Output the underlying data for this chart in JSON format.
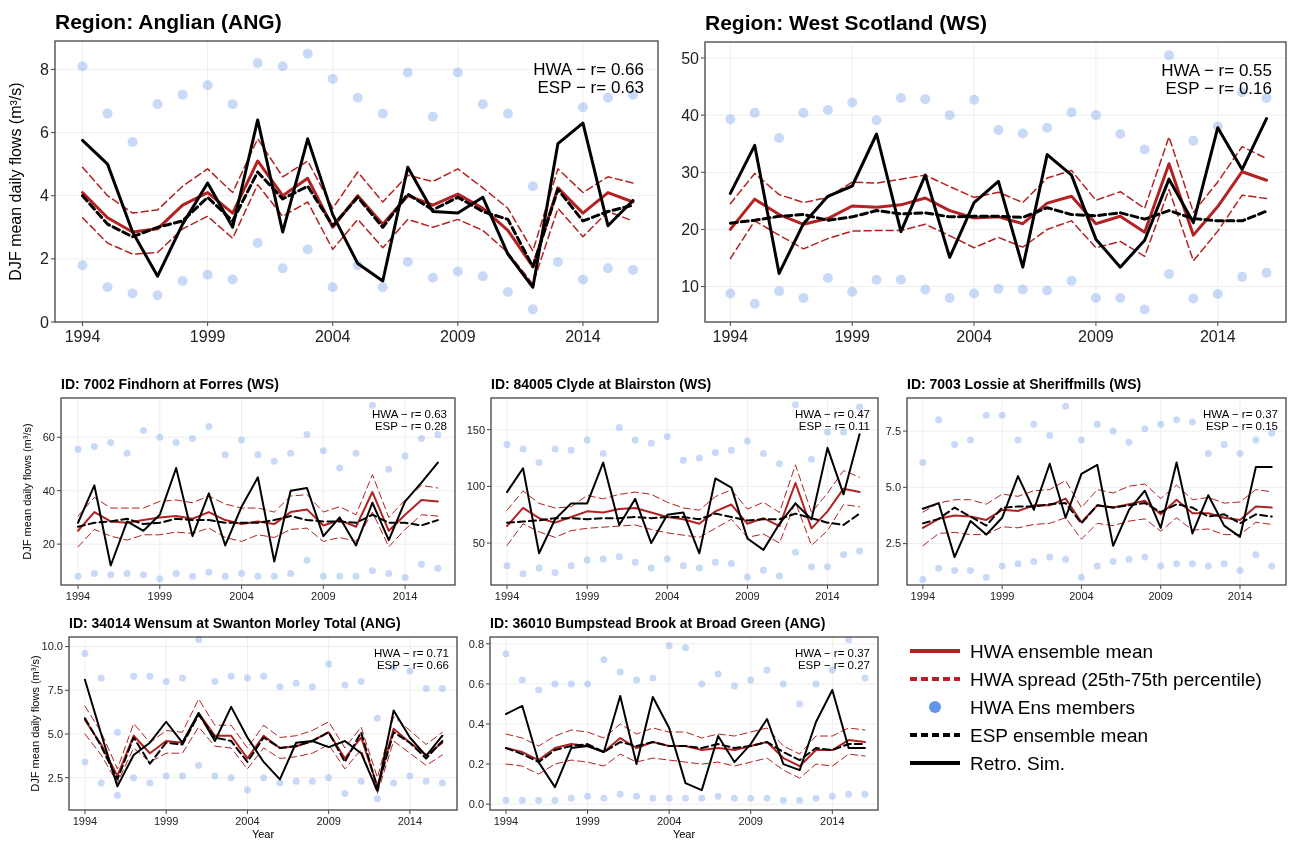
{
  "chart_data": [
    {
      "type": "line",
      "title": "Region: Anglian (ANG)",
      "ylabel": "DJF mean daily flows (m³/s)",
      "annotations": [
        "HWA − r= 0.66",
        "ESP − r= 0.63"
      ],
      "xlim": [
        1992.9,
        2017
      ],
      "ylim": [
        0,
        8.9
      ],
      "xticks": [
        1994,
        1999,
        2004,
        2009,
        2014
      ],
      "yticks": [
        0,
        2,
        4,
        6,
        8
      ],
      "grid": true,
      "legend": false,
      "x": [
        1994,
        1995,
        1996,
        1997,
        1998,
        1999,
        2000,
        2001,
        2002,
        2003,
        2004,
        2005,
        2006,
        2007,
        2008,
        2009,
        2010,
        2011,
        2012,
        2013,
        2014,
        2015,
        2016
      ],
      "series": [
        {
          "type": "scatter",
          "marker": "circle",
          "color": "#6495ed",
          "x": [
            1994,
            1994,
            1995,
            1995,
            1996,
            1996,
            1997,
            1997,
            1998,
            1998,
            1999,
            1999,
            2000,
            2000,
            2001,
            2001,
            2002,
            2002,
            2003,
            2003,
            2004,
            2004,
            2005,
            2005,
            2006,
            2006,
            2007,
            2007,
            2008,
            2008,
            2009,
            2009,
            2010,
            2010,
            2011,
            2011,
            2012,
            2012,
            2013,
            2014,
            2014,
            2015,
            2015,
            2016,
            2016
          ],
          "values": [
            1.8,
            8.1,
            1.1,
            6.6,
            0.9,
            5.7,
            0.85,
            6.9,
            1.3,
            7.2,
            1.5,
            7.5,
            1.35,
            6.9,
            2.5,
            8.2,
            1.7,
            8.1,
            2.3,
            8.5,
            1.1,
            7.7,
            1.8,
            7.1,
            1.1,
            6.6,
            1.9,
            7.9,
            1.4,
            6.5,
            1.6,
            7.9,
            1.45,
            6.9,
            0.95,
            6.6,
            0.4,
            4.3,
            1.9,
            1.35,
            6.8,
            1.7,
            7.1,
            1.65,
            7.2
          ]
        },
        {
          "type": "line",
          "line_style": "dashed",
          "color": "#b22222",
          "values": [
            4.9,
            4.0,
            3.45,
            3.55,
            4.3,
            4.85,
            4.1,
            5.8,
            4.6,
            5.1,
            3.6,
            4.75,
            3.8,
            4.65,
            4.45,
            4.85,
            4.25,
            3.6,
            2.25,
            4.85,
            4.1,
            4.6,
            4.4
          ]
        },
        {
          "type": "line",
          "line_style": "dashed",
          "color": "#b22222",
          "values": [
            3.3,
            2.5,
            2.15,
            2.2,
            2.95,
            3.35,
            2.65,
            4.35,
            3.35,
            3.8,
            2.3,
            3.25,
            2.35,
            3.25,
            3.0,
            3.25,
            2.9,
            2.2,
            1.2,
            3.6,
            2.7,
            3.5,
            3.2
          ]
        },
        {
          "type": "line",
          "line_style": "solid",
          "color": "#b22222",
          "values": [
            4.1,
            3.3,
            2.85,
            2.95,
            3.7,
            4.1,
            3.45,
            5.1,
            4.0,
            4.55,
            3.0,
            4.0,
            3.1,
            4.0,
            3.7,
            4.05,
            3.6,
            2.9,
            1.75,
            4.25,
            3.45,
            4.1,
            3.8
          ]
        },
        {
          "type": "line",
          "line_style": "dashed",
          "color": "#000000",
          "values": [
            4.0,
            3.1,
            2.7,
            3.0,
            3.2,
            3.95,
            3.2,
            4.75,
            3.9,
            4.3,
            3.05,
            3.95,
            3.0,
            4.05,
            3.55,
            3.95,
            3.5,
            3.25,
            1.75,
            4.2,
            3.2,
            3.5,
            3.7
          ]
        },
        {
          "type": "line",
          "line_style": "solid",
          "color": "#000000",
          "values": [
            5.75,
            5.0,
            2.85,
            1.45,
            3.1,
            4.4,
            3.0,
            6.4,
            2.85,
            5.8,
            3.4,
            1.85,
            1.3,
            4.9,
            3.5,
            3.45,
            3.95,
            2.15,
            1.1,
            5.65,
            6.3,
            3.05,
            3.85
          ]
        }
      ]
    },
    {
      "type": "line",
      "title": "Region: West Scotland (WS)",
      "annotations": [
        "HWA − r= 0.55",
        "ESP − r= 0.16"
      ],
      "xlim": [
        1992.96,
        2016.8
      ],
      "ylim": [
        3.8,
        52.8
      ],
      "xticks": [
        1994,
        1999,
        2004,
        2009,
        2014
      ],
      "yticks": [
        10,
        20,
        30,
        40,
        50
      ],
      "grid": true,
      "legend": false,
      "x": [
        1994,
        1995,
        1996,
        1997,
        1998,
        1999,
        2000,
        2001,
        2002,
        2003,
        2004,
        2005,
        2006,
        2007,
        2008,
        2009,
        2010,
        2011,
        2012,
        2013,
        2014,
        2015,
        2016
      ],
      "series": [
        {
          "type": "scatter",
          "marker": "circle",
          "color": "#6495ed",
          "x": [
            1994,
            1994,
            1995,
            1995,
            1996,
            1996,
            1997,
            1997,
            1998,
            1998,
            1999,
            1999,
            2000,
            2000,
            2001,
            2001,
            2002,
            2002,
            2003,
            2003,
            2004,
            2004,
            2005,
            2005,
            2006,
            2006,
            2007,
            2007,
            2008,
            2008,
            2009,
            2009,
            2010,
            2010,
            2011,
            2011,
            2012,
            2012,
            2013,
            2013,
            2014,
            2014,
            2015,
            2015,
            2016,
            2016
          ],
          "values": [
            8.8,
            39.3,
            7.0,
            40.4,
            9.2,
            36.0,
            8.0,
            40.4,
            11.5,
            40.9,
            9.1,
            42.2,
            11.2,
            39.1,
            11.2,
            43.0,
            9.5,
            42.8,
            8.0,
            40.0,
            8.8,
            42.7,
            9.6,
            37.4,
            9.5,
            36.8,
            9.3,
            37.8,
            11.0,
            40.5,
            8.0,
            40.0,
            8.0,
            36.7,
            6.0,
            34.0,
            12.2,
            50.5,
            7.9,
            35.5,
            8.7,
            38.0,
            11.7,
            44.0,
            12.4,
            43.0
          ]
        },
        {
          "type": "line",
          "line_style": "dashed",
          "color": "#b22222",
          "values": [
            24.5,
            29.8,
            26.1,
            24.7,
            25.6,
            28.3,
            28.1,
            28.8,
            29.5,
            27.5,
            25.6,
            26.5,
            24.7,
            29.0,
            30.3,
            25.1,
            26.6,
            23.7,
            36.2,
            23.0,
            28.3,
            34.5,
            32.4
          ]
        },
        {
          "type": "line",
          "line_style": "dashed",
          "color": "#b22222",
          "values": [
            14.9,
            21.5,
            19.0,
            16.6,
            18.4,
            19.7,
            19.8,
            19.8,
            20.9,
            18.9,
            16.8,
            18.6,
            16.9,
            20.0,
            21.5,
            16.8,
            17.9,
            15.3,
            27.0,
            14.5,
            19.7,
            26.0,
            25.4
          ]
        },
        {
          "type": "line",
          "line_style": "solid",
          "color": "#b22222",
          "values": [
            20.0,
            25.3,
            22.6,
            20.9,
            21.9,
            24.1,
            23.9,
            24.3,
            25.5,
            23.3,
            22.0,
            22.2,
            21.0,
            24.6,
            25.8,
            21.0,
            22.3,
            19.5,
            31.5,
            19.0,
            24.0,
            30.1,
            28.6
          ]
        },
        {
          "type": "line",
          "line_style": "dashed",
          "color": "#000000",
          "values": [
            21.1,
            21.6,
            22.3,
            22.6,
            21.6,
            22.2,
            23.3,
            22.7,
            22.9,
            22.2,
            22.3,
            22.3,
            22.1,
            23.8,
            22.6,
            22.4,
            22.9,
            21.8,
            23.3,
            21.9,
            21.5,
            21.5,
            23.2
          ]
        },
        {
          "type": "line",
          "line_style": "solid",
          "color": "#000000",
          "values": [
            26.3,
            34.7,
            12.3,
            21.0,
            25.8,
            27.6,
            36.7,
            19.6,
            29.5,
            15.1,
            24.7,
            28.4,
            13.4,
            33.1,
            29.5,
            18.3,
            13.4,
            18.1,
            28.8,
            21.2,
            37.8,
            30.5,
            39.4
          ]
        }
      ]
    },
    {
      "type": "line",
      "title": "ID: 7002 Findhorn at Forres (WS)",
      "ylabel": "DJF mean daily flows (m³/s)",
      "annotations": [
        "HWA − r= 0.63",
        "ESP − r= 0.28"
      ],
      "xlim": [
        1992.96,
        2017.05
      ],
      "ylim": [
        4.7,
        74.7
      ],
      "xticks": [
        1994,
        1999,
        2004,
        2009,
        2014
      ],
      "yticks": [
        20,
        40,
        60
      ],
      "grid": true,
      "legend": false,
      "x": [
        1994,
        1995,
        1996,
        1997,
        1998,
        1999,
        2000,
        2001,
        2002,
        2003,
        2004,
        2005,
        2006,
        2007,
        2008,
        2009,
        2010,
        2011,
        2012,
        2013,
        2014,
        2015,
        2016
      ],
      "series": [
        {
          "type": "scatter",
          "marker": "circle",
          "color": "#6495ed",
          "x": [
            1994,
            1994,
            1995,
            1995,
            1996,
            1996,
            1997,
            1997,
            1998,
            1998,
            1999,
            1999,
            2000,
            2000,
            2001,
            2001,
            2002,
            2002,
            2003,
            2003,
            2004,
            2004,
            2005,
            2005,
            2006,
            2006,
            2007,
            2007,
            2008,
            2008,
            2009,
            2009,
            2010,
            2010,
            2011,
            2011,
            2012,
            2012,
            2013,
            2013,
            2014,
            2014,
            2015,
            2015,
            2016,
            2016
          ],
          "values": [
            8,
            55.5,
            9,
            56.5,
            8.5,
            58,
            9,
            54,
            8.5,
            62.5,
            7,
            60,
            9,
            58,
            8,
            59.5,
            9.5,
            64,
            8,
            53.5,
            9,
            59,
            8,
            53.5,
            8,
            51,
            9,
            54,
            14,
            61,
            8,
            55,
            8,
            48.5,
            8,
            54,
            10,
            72,
            9,
            48,
            7.5,
            53,
            12.5,
            59.5,
            11,
            61
          ]
        },
        {
          "type": "line",
          "line_style": "dashed",
          "color": "#b22222",
          "values": [
            30.5,
            37.5,
            33.5,
            33.5,
            33.5,
            36,
            36.5,
            35.5,
            38,
            35,
            33.5,
            33.5,
            32,
            38,
            38.5,
            32,
            34,
            31,
            46,
            30,
            36.5,
            42,
            41
          ]
        },
        {
          "type": "line",
          "line_style": "dashed",
          "color": "#b22222",
          "values": [
            19,
            25.5,
            23,
            21.5,
            23.5,
            23.5,
            24.5,
            24,
            26,
            22.5,
            21,
            23.5,
            22.5,
            25.5,
            26,
            21,
            22.5,
            21,
            32,
            19,
            25.5,
            31,
            30.5
          ]
        },
        {
          "type": "line",
          "line_style": "solid",
          "color": "#b22222",
          "values": [
            25,
            32,
            28.5,
            28,
            29,
            30,
            30.5,
            29.5,
            32,
            29,
            27.5,
            28.5,
            27.5,
            32,
            33,
            27,
            29,
            26.5,
            39.5,
            25,
            31,
            36.5,
            36
          ]
        },
        {
          "type": "line",
          "line_style": "dashed",
          "color": "#000000",
          "values": [
            26.5,
            28,
            28.5,
            29.5,
            27.5,
            28,
            29.5,
            29,
            29,
            28,
            28,
            28,
            29,
            30.5,
            29,
            28.5,
            28.5,
            28,
            31,
            28,
            28,
            27,
            29
          ]
        },
        {
          "type": "line",
          "line_style": "solid",
          "color": "#000000",
          "values": [
            28,
            42,
            12,
            28.5,
            25,
            31,
            48.5,
            23,
            39,
            19.5,
            34,
            45,
            13.5,
            40,
            41,
            23,
            30,
            19.5,
            35.5,
            21.5,
            36,
            43,
            50.5
          ]
        }
      ]
    },
    {
      "type": "line",
      "title": "ID: 84005 Clyde at Blairston (WS)",
      "annotations": [
        "HWA − r= 0.47",
        "ESP − r= 0.11"
      ],
      "xlim": [
        1993,
        2017.15
      ],
      "ylim": [
        13,
        178
      ],
      "xticks": [
        1994,
        1999,
        2004,
        2009,
        2014
      ],
      "yticks": [
        50,
        100,
        150
      ],
      "grid": true,
      "legend": false,
      "x": [
        1994,
        1995,
        1996,
        1997,
        1998,
        1999,
        2000,
        2001,
        2002,
        2003,
        2004,
        2005,
        2006,
        2007,
        2008,
        2009,
        2010,
        2011,
        2012,
        2013,
        2014,
        2015,
        2016
      ],
      "series": [
        {
          "type": "scatter",
          "marker": "circle",
          "color": "#6495ed",
          "x": [
            1994,
            1994,
            1995,
            1995,
            1996,
            1996,
            1997,
            1997,
            1998,
            1998,
            1999,
            1999,
            2000,
            2000,
            2001,
            2001,
            2002,
            2002,
            2003,
            2003,
            2004,
            2004,
            2005,
            2005,
            2006,
            2006,
            2007,
            2007,
            2008,
            2008,
            2009,
            2009,
            2010,
            2010,
            2011,
            2011,
            2012,
            2012,
            2013,
            2013,
            2014,
            2014,
            2015,
            2015,
            2016,
            2016
          ],
          "values": [
            30,
            137,
            23,
            133,
            28,
            121,
            24,
            133,
            30,
            132,
            35,
            141,
            36,
            129,
            38,
            152,
            33,
            141,
            28,
            138,
            36,
            144,
            30,
            123,
            28,
            125,
            33,
            130,
            32,
            132,
            20,
            140,
            26,
            129,
            21,
            120,
            42,
            172,
            29,
            124,
            29,
            148,
            40,
            148,
            43,
            170
          ]
        },
        {
          "type": "line",
          "line_style": "dashed",
          "color": "#b22222",
          "values": [
            79,
            96,
            85,
            81,
            82,
            92,
            89,
            93,
            95,
            93,
            86,
            81,
            79,
            91,
            97,
            80,
            86,
            77,
            119,
            77,
            94,
            114,
            108
          ]
        },
        {
          "type": "line",
          "line_style": "dashed",
          "color": "#b22222",
          "values": [
            48,
            67,
            60,
            55,
            61,
            63,
            64,
            65,
            66,
            62,
            59,
            57,
            55,
            63,
            71,
            55,
            58,
            50,
            86,
            48,
            61,
            84,
            82
          ]
        },
        {
          "type": "line",
          "line_style": "solid",
          "color": "#b22222",
          "values": [
            65,
            81,
            72,
            68,
            73,
            78,
            77,
            80,
            81,
            77,
            73,
            71,
            67,
            78,
            84,
            67,
            72,
            65,
            103,
            63,
            78,
            98,
            95
          ]
        },
        {
          "type": "line",
          "line_style": "dashed",
          "color": "#000000",
          "values": [
            68,
            69,
            70,
            72,
            72,
            71,
            72,
            72,
            73,
            72,
            73,
            73,
            71,
            76,
            73,
            70,
            71,
            71,
            76,
            72,
            68,
            66,
            76
          ]
        },
        {
          "type": "line",
          "line_style": "solid",
          "color": "#000000",
          "values": [
            95,
            116,
            41,
            71,
            85,
            85,
            121,
            66,
            89,
            50,
            75,
            77,
            41,
            107,
            99,
            54,
            44,
            67,
            85,
            71,
            134,
            93,
            146
          ]
        }
      ]
    },
    {
      "type": "line",
      "title": "ID: 7003 Lossie at Sheriffmills (WS)",
      "annotations": [
        "HWA − r= 0.37",
        "ESP − r= 0.15"
      ],
      "xlim": [
        1993,
        2016.9
      ],
      "ylim": [
        0.66,
        8.97
      ],
      "xticks": [
        1994,
        1999,
        2004,
        2009,
        2014
      ],
      "yticks": [
        {
          "value": 2.5,
          "label": "2.5"
        },
        {
          "value": 5,
          "label": "5.0"
        },
        {
          "value": 7.5,
          "label": "7.5"
        }
      ],
      "grid": true,
      "legend": false,
      "x": [
        1994,
        1995,
        1996,
        1997,
        1998,
        1999,
        2000,
        2001,
        2002,
        2003,
        2004,
        2005,
        2006,
        2007,
        2008,
        2009,
        2010,
        2011,
        2012,
        2013,
        2014,
        2015,
        2016
      ],
      "series": [
        {
          "type": "scatter",
          "marker": "circle",
          "color": "#6495ed",
          "x": [
            1994,
            1994,
            1995,
            1995,
            1996,
            1996,
            1997,
            1997,
            1998,
            1998,
            1999,
            1999,
            2000,
            2000,
            2001,
            2001,
            2002,
            2002,
            2003,
            2003,
            2004,
            2004,
            2005,
            2005,
            2006,
            2006,
            2007,
            2007,
            2008,
            2008,
            2009,
            2009,
            2010,
            2010,
            2011,
            2011,
            2012,
            2012,
            2013,
            2013,
            2014,
            2014,
            2015,
            2015,
            2016,
            2016
          ],
          "values": [
            0.9,
            6.1,
            1.4,
            8.0,
            1.3,
            6.9,
            1.3,
            7.1,
            1.0,
            8.2,
            1.5,
            8.2,
            1.6,
            7.1,
            1.7,
            7.8,
            1.9,
            7.3,
            1.8,
            8.6,
            1.0,
            7.1,
            1.5,
            7.8,
            1.7,
            7.5,
            1.8,
            7.0,
            1.9,
            7.6,
            1.5,
            7.8,
            1.6,
            8.0,
            1.6,
            7.9,
            1.5,
            6.5,
            1.6,
            6.9,
            1.3,
            6.5,
            2.0,
            7.1,
            1.5,
            7.4
          ]
        },
        {
          "type": "line",
          "line_style": "dashed",
          "color": "#b22222",
          "values": [
            3.9,
            4.3,
            4.45,
            4.45,
            4.25,
            4.7,
            4.6,
            4.85,
            4.9,
            5.3,
            4.1,
            4.9,
            4.75,
            5.05,
            5.15,
            4.5,
            5.1,
            4.45,
            4.55,
            4.3,
            4.35,
            4.9,
            4.8
          ]
        },
        {
          "type": "line",
          "line_style": "dashed",
          "color": "#b22222",
          "values": [
            2.4,
            2.95,
            3.0,
            2.9,
            2.9,
            3.25,
            3.2,
            3.35,
            3.4,
            3.65,
            2.7,
            3.4,
            3.3,
            3.5,
            3.6,
            3.05,
            3.65,
            3.1,
            3.15,
            2.9,
            2.9,
            3.45,
            3.35
          ]
        },
        {
          "type": "line",
          "line_style": "solid",
          "color": "#b22222",
          "values": [
            3.2,
            3.6,
            3.75,
            3.7,
            3.55,
            4.0,
            3.95,
            4.2,
            4.2,
            4.5,
            3.45,
            4.2,
            4.1,
            4.25,
            4.4,
            3.8,
            4.45,
            3.85,
            3.85,
            3.65,
            3.55,
            4.15,
            4.1
          ]
        },
        {
          "type": "line",
          "line_style": "dashed",
          "color": "#000000",
          "values": [
            3.4,
            3.6,
            4.1,
            3.7,
            3.3,
            4.1,
            4.15,
            4.15,
            4.25,
            4.3,
            3.4,
            4.2,
            4.1,
            4.2,
            4.3,
            3.9,
            4.25,
            4.1,
            3.7,
            3.8,
            3.4,
            3.8,
            3.7
          ]
        },
        {
          "type": "line",
          "line_style": "solid",
          "color": "#000000",
          "values": [
            4.05,
            4.3,
            1.9,
            3.5,
            2.9,
            3.65,
            5.5,
            4.0,
            6.05,
            3.65,
            5.6,
            6.0,
            2.4,
            4.0,
            4.85,
            3.2,
            6.1,
            2.95,
            4.65,
            3.3,
            2.8,
            5.9,
            5.9
          ]
        }
      ]
    },
    {
      "type": "line",
      "title": "ID: 34014 Wensum at Swanton Morley Total (ANG)",
      "xlabel": "Year",
      "ylabel": "DJF mean daily flows (m³/s)",
      "annotations": [
        "HWA − r= 0.71",
        "ESP − r= 0.66"
      ],
      "xlim": [
        1993.02,
        2016.9
      ],
      "ylim": [
        0.65,
        10.55
      ],
      "xticks": [
        1994,
        1999,
        2004,
        2009,
        2014
      ],
      "yticks": [
        {
          "value": 2.5,
          "label": "2.5"
        },
        {
          "value": 5,
          "label": "5.0"
        },
        {
          "value": 7.5,
          "label": "7.5"
        },
        {
          "value": 10,
          "label": "10.0"
        }
      ],
      "grid": true,
      "legend": false,
      "x": [
        1994,
        1995,
        1996,
        1997,
        1998,
        1999,
        2000,
        2001,
        2002,
        2003,
        2004,
        2005,
        2006,
        2007,
        2008,
        2009,
        2010,
        2011,
        2012,
        2013,
        2014,
        2015,
        2016
      ],
      "series": [
        {
          "type": "scatter",
          "marker": "circle",
          "color": "#6495ed",
          "x": [
            1994,
            1994,
            1995,
            1995,
            1996,
            1996,
            1997,
            1997,
            1998,
            1998,
            1999,
            1999,
            2000,
            2000,
            2001,
            2001,
            2002,
            2002,
            2003,
            2003,
            2004,
            2004,
            2005,
            2005,
            2006,
            2006,
            2007,
            2007,
            2008,
            2008,
            2009,
            2009,
            2010,
            2010,
            2011,
            2011,
            2012,
            2012,
            2013,
            2013,
            2014,
            2014,
            2015,
            2015,
            2016,
            2016
          ],
          "values": [
            3.4,
            9.6,
            2.2,
            8.2,
            1.5,
            5.1,
            2.5,
            8.3,
            2.2,
            8.3,
            2.6,
            8.0,
            2.6,
            8.2,
            3.2,
            10.4,
            2.6,
            8.0,
            2.5,
            8.3,
            1.8,
            8.2,
            2.5,
            8.3,
            2.2,
            7.7,
            2.3,
            7.9,
            2.3,
            7.7,
            2.5,
            9.0,
            1.6,
            7.8,
            2.3,
            8.0,
            1.3,
            5.9,
            2.2,
            8.8,
            2.6,
            8.6,
            2.3,
            7.6,
            2.2,
            7.6
          ]
        },
        {
          "type": "line",
          "line_style": "dashed",
          "color": "#b22222",
          "values": [
            6.6,
            5.1,
            3.0,
            5.6,
            4.5,
            5.2,
            5.1,
            7.0,
            5.5,
            5.5,
            4.2,
            5.5,
            4.8,
            4.9,
            5.2,
            5.7,
            4.2,
            5.4,
            2.5,
            6.0,
            5.2,
            4.4,
            5.1
          ]
        },
        {
          "type": "line",
          "line_style": "dashed",
          "color": "#b22222",
          "values": [
            5.0,
            3.8,
            2.2,
            4.2,
            3.4,
            3.9,
            3.9,
            5.4,
            4.3,
            4.2,
            3.0,
            4.2,
            3.6,
            3.7,
            3.9,
            4.4,
            3.0,
            4.1,
            1.6,
            4.6,
            3.9,
            3.2,
            3.8
          ]
        },
        {
          "type": "line",
          "line_style": "solid",
          "color": "#b22222",
          "values": [
            5.8,
            4.4,
            2.6,
            4.9,
            3.9,
            4.6,
            4.5,
            6.2,
            4.9,
            4.9,
            3.6,
            4.9,
            4.2,
            4.3,
            4.6,
            5.1,
            3.6,
            4.8,
            2.0,
            5.3,
            4.5,
            3.8,
            4.5
          ]
        },
        {
          "type": "line",
          "line_style": "dashed",
          "color": "#000000",
          "values": [
            5.9,
            4.3,
            2.4,
            4.8,
            3.3,
            4.5,
            4.4,
            6.1,
            4.8,
            4.6,
            3.4,
            4.8,
            4.2,
            4.3,
            4.6,
            5.1,
            3.4,
            5.1,
            1.9,
            5.1,
            4.5,
            3.6,
            4.6
          ]
        },
        {
          "type": "line",
          "line_style": "solid",
          "color": "#000000",
          "values": [
            8.1,
            5.0,
            2.0,
            3.8,
            4.5,
            5.7,
            4.5,
            6.2,
            4.6,
            6.55,
            4.8,
            3.4,
            2.4,
            4.5,
            4.6,
            4.25,
            4.6,
            3.9,
            1.75,
            6.35,
            4.8,
            3.75,
            4.9
          ]
        }
      ]
    },
    {
      "type": "line",
      "title": "ID: 36010 Bumpstead Brook at Broad Green (ANG)",
      "xlabel": "Year",
      "annotations": [
        "HWA − r= 0.37",
        "ESP − r= 0.27"
      ],
      "xlim": [
        1993.02,
        2016.8
      ],
      "ylim": [
        -0.029,
        0.834
      ],
      "xticks": [
        1994,
        1999,
        2004,
        2009,
        2014
      ],
      "yticks": [
        {
          "value": 0,
          "label": "0.0"
        },
        {
          "value": 0.2,
          "label": "0.2"
        },
        {
          "value": 0.4,
          "label": "0.4"
        },
        {
          "value": 0.6,
          "label": "0.6"
        },
        {
          "value": 0.8,
          "label": "0.8"
        }
      ],
      "grid": true,
      "legend": "right",
      "x": [
        1994,
        1995,
        1996,
        1997,
        1998,
        1999,
        2000,
        2001,
        2002,
        2003,
        2004,
        2005,
        2006,
        2007,
        2008,
        2009,
        2010,
        2011,
        2012,
        2013,
        2014,
        2015,
        2016
      ],
      "series": [
        {
          "type": "line",
          "name": "HWA ensemble mean",
          "line_style": "solid",
          "color": "#b22222",
          "values": [
            0.28,
            0.26,
            0.22,
            0.28,
            0.3,
            0.29,
            0.26,
            0.33,
            0.28,
            0.31,
            0.29,
            0.29,
            0.27,
            0.28,
            0.27,
            0.29,
            0.31,
            0.23,
            0.19,
            0.27,
            0.27,
            0.32,
            0.31
          ]
        },
        {
          "type": "line",
          "name": "HWA spread (25th-75th percentile)",
          "line_style": "dashed",
          "color": "#b22222",
          "values": [
            0.35,
            0.33,
            0.29,
            0.34,
            0.37,
            0.36,
            0.33,
            0.4,
            0.35,
            0.38,
            0.36,
            0.36,
            0.33,
            0.35,
            0.34,
            0.36,
            0.38,
            0.29,
            0.25,
            0.34,
            0.34,
            0.38,
            0.37
          ]
        },
        {
          "type": "scatter",
          "name": "HWA Ens members",
          "marker": "circle",
          "color": "#6495ed",
          "x": [
            1994,
            1994,
            1995,
            1995,
            1996,
            1996,
            1997,
            1997,
            1998,
            1998,
            1999,
            1999,
            2000,
            2000,
            2001,
            2001,
            2002,
            2002,
            2003,
            2003,
            2004,
            2004,
            2005,
            2005,
            2006,
            2006,
            2007,
            2007,
            2008,
            2008,
            2009,
            2009,
            2010,
            2010,
            2011,
            2011,
            2012,
            2012,
            2013,
            2013,
            2014,
            2014,
            2015,
            2015,
            2016,
            2016
          ],
          "values": [
            0.02,
            0.75,
            0.02,
            0.62,
            0.02,
            0.57,
            0.02,
            0.6,
            0.03,
            0.6,
            0.04,
            0.6,
            0.03,
            0.72,
            0.05,
            0.66,
            0.04,
            0.62,
            0.03,
            0.63,
            0.03,
            0.79,
            0.03,
            0.78,
            0.03,
            0.6,
            0.04,
            0.65,
            0.03,
            0.59,
            0.03,
            0.62,
            0.03,
            0.67,
            0.02,
            0.6,
            0.02,
            0.5,
            0.03,
            0.6,
            0.04,
            0.67,
            0.05,
            0.82,
            0.05,
            0.63
          ]
        },
        {
          "type": "line",
          "name": "ESP ensemble mean",
          "line_style": "dashed",
          "color": "#000000",
          "values": [
            0.28,
            0.25,
            0.21,
            0.27,
            0.29,
            0.3,
            0.26,
            0.31,
            0.29,
            0.31,
            0.29,
            0.29,
            0.28,
            0.3,
            0.28,
            0.29,
            0.31,
            0.26,
            0.22,
            0.28,
            0.27,
            0.3,
            0.3
          ]
        },
        {
          "type": "line",
          "name": "Retro. Sim.",
          "line_style": "solid",
          "color": "#000000",
          "values": [
            0.45,
            0.49,
            0.21,
            0.085,
            0.28,
            0.29,
            0.26,
            0.54,
            0.2,
            0.535,
            0.38,
            0.105,
            0.07,
            0.34,
            0.21,
            0.3,
            0.425,
            0.2,
            0.17,
            0.41,
            0.57,
            0.28,
            0.28
          ]
        },
        {
          "type": "line",
          "line_style": "dashed",
          "color": "#b22222",
          "values": [
            0.2,
            0.19,
            0.15,
            0.2,
            0.22,
            0.21,
            0.19,
            0.25,
            0.21,
            0.23,
            0.22,
            0.21,
            0.2,
            0.21,
            0.19,
            0.21,
            0.23,
            0.17,
            0.13,
            0.2,
            0.19,
            0.25,
            0.24
          ]
        }
      ]
    }
  ]
}
